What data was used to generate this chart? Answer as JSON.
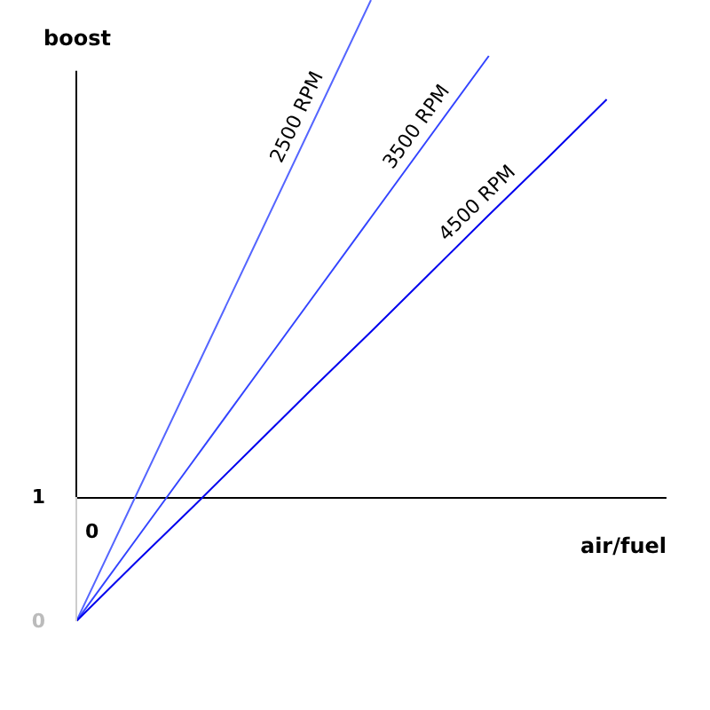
{
  "chart_data": {
    "type": "line",
    "xlabel": "air/fuel",
    "ylabel": "boost",
    "ylim": [
      0,
      5
    ],
    "yticks": [
      0,
      1
    ],
    "marker": "none",
    "line_style": "solid",
    "annotations": [
      "0"
    ],
    "categories": [
      null,
      null,
      null,
      null,
      null,
      null,
      null,
      null,
      null,
      null,
      null
    ],
    "series": [
      {
        "name": "2500 RPM",
        "color": "#5566ff",
        "values": [
          0,
          1,
          2,
          3,
          4,
          5,
          null,
          null,
          null,
          null,
          null
        ]
      },
      {
        "name": "3500 RPM",
        "color": "#3344ff",
        "values": [
          0,
          0.65,
          1.3,
          1.95,
          2.6,
          3.25,
          3.9,
          4.55,
          null,
          null,
          null
        ]
      },
      {
        "name": "4500 RPM",
        "color": "#0000ee",
        "values": [
          0,
          0.47,
          0.93,
          1.4,
          1.87,
          2.33,
          2.8,
          3.27,
          3.73,
          4.2,
          null
        ]
      }
    ]
  }
}
